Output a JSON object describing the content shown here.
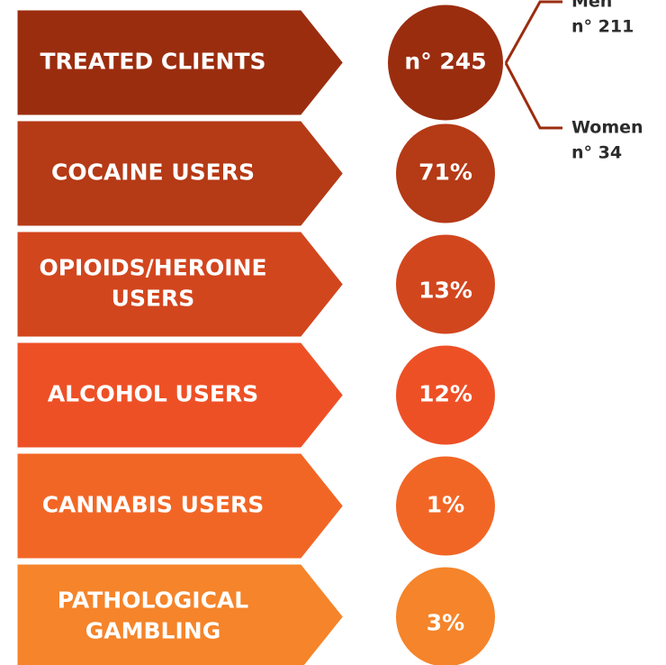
{
  "rows": [
    {
      "label": [
        "TREATED CLIENTS"
      ],
      "value": "n° 245",
      "color": "#9b2d0f"
    },
    {
      "label": [
        "COCAINE USERS"
      ],
      "value": "71%",
      "color": "#b53a16"
    },
    {
      "label": [
        "OPIOIDS/HEROINE",
        "USERS"
      ],
      "value": "13%",
      "color": "#d2461e"
    },
    {
      "label": [
        "ALCOHOL USERS"
      ],
      "value": "12%",
      "color": "#ee5026"
    },
    {
      "label": [
        "CANNABIS USERS"
      ],
      "value": "1%",
      "color": "#f26625"
    },
    {
      "label": [
        "PATHOLOGICAL",
        "GAMBLING"
      ],
      "value": "3%",
      "color": "#f5842a"
    }
  ],
  "branches": [
    {
      "label": "Men",
      "value": "n° 211"
    },
    {
      "label": "Women",
      "value": "n° 34"
    }
  ]
}
